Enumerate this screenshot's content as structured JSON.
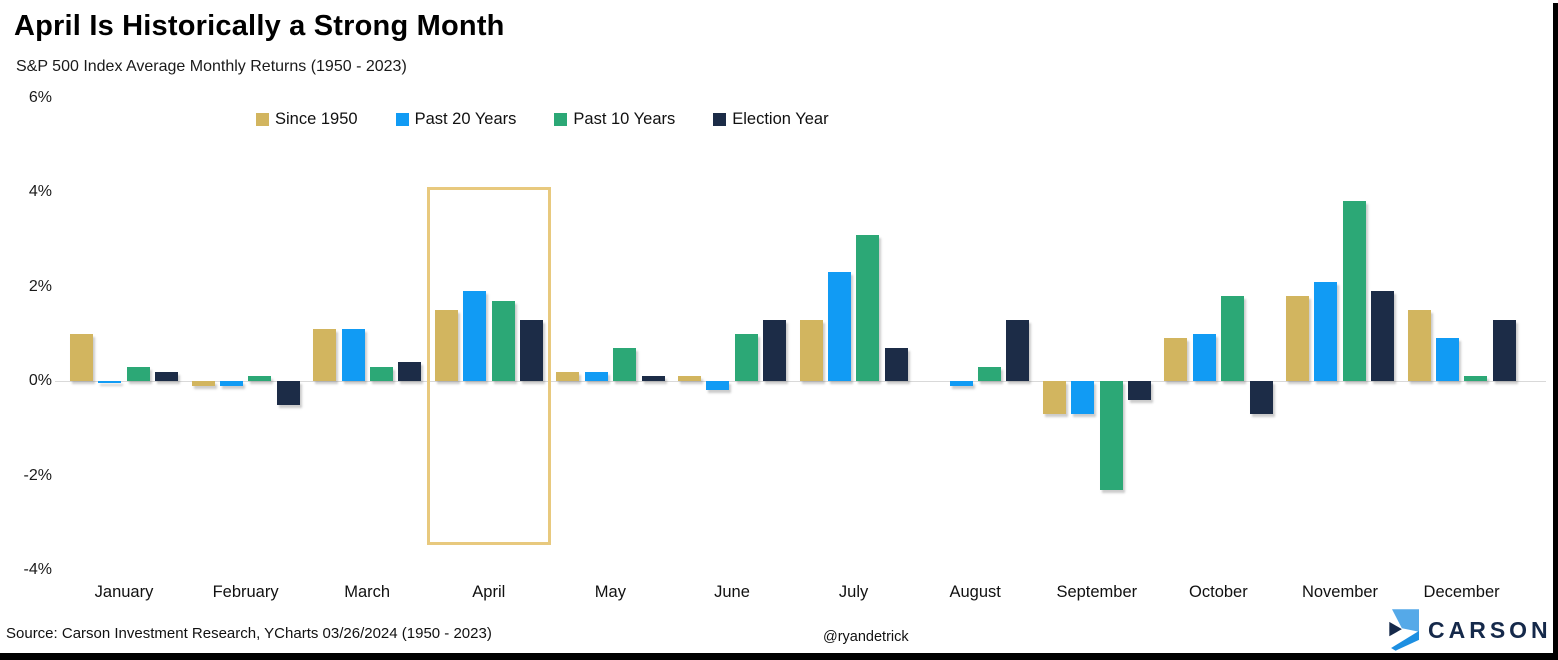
{
  "header": {
    "title": "April Is Historically a Strong Month",
    "subtitle": "S&P 500 Index Average Monthly Returns (1950 - 2023)"
  },
  "chart_data": {
    "type": "bar",
    "categories": [
      "January",
      "February",
      "March",
      "April",
      "May",
      "June",
      "July",
      "August",
      "September",
      "October",
      "November",
      "December"
    ],
    "series": [
      {
        "name": "Since 1950",
        "color": "#D2B55F",
        "values": [
          1.0,
          -0.1,
          1.1,
          1.5,
          0.2,
          0.1,
          1.3,
          0.0,
          -0.7,
          0.9,
          1.8,
          1.5
        ]
      },
      {
        "name": "Past 20 Years",
        "color": "#119BF4",
        "values": [
          -0.05,
          -0.1,
          1.1,
          1.9,
          0.2,
          -0.2,
          2.3,
          -0.1,
          -0.7,
          1.0,
          2.1,
          0.9
        ]
      },
      {
        "name": "Past 10 Years",
        "color": "#2CA876",
        "values": [
          0.3,
          0.1,
          0.3,
          1.7,
          0.7,
          1.0,
          3.1,
          0.3,
          -2.3,
          1.8,
          3.8,
          0.1
        ]
      },
      {
        "name": "Election Year",
        "color": "#1C2C47",
        "values": [
          0.2,
          -0.5,
          0.4,
          1.3,
          0.1,
          1.3,
          0.7,
          1.3,
          -0.4,
          -0.7,
          1.9,
          1.3
        ]
      }
    ],
    "ylabel": "",
    "xlabel": "",
    "ylim": [
      -4,
      6
    ],
    "yticks": [
      6,
      4,
      2,
      0,
      -2,
      -4
    ],
    "ytick_labels": [
      "6%",
      "4%",
      "2%",
      "0%",
      "-2%",
      "-4%"
    ],
    "grid": "zero-line-only",
    "legend_position": "top",
    "highlight_month": "April",
    "highlight_color": "#E8C97E"
  },
  "footer": {
    "source": "Source: Carson Investment Research, YCharts 03/26/2024 (1950 - 2023)",
    "handle": "@ryandetrick",
    "logo_text": "CARSON"
  },
  "colors": {
    "zero_gridline": "#D9D9D9",
    "edge_bars": "#000000",
    "logo_light_blue": "#55A9E8",
    "logo_blue": "#1D8FE1",
    "logo_navy": "#15294A"
  }
}
